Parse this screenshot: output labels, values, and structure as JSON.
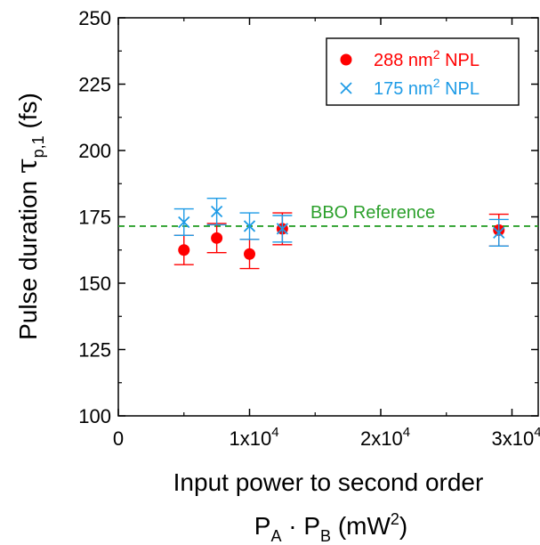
{
  "chart_data": {
    "type": "scatter",
    "xlim": [
      0,
      32000
    ],
    "ylim": [
      100,
      250
    ],
    "grid": false,
    "legend_position": "top-right",
    "yticks": [
      100,
      125,
      150,
      175,
      200,
      225,
      250
    ],
    "ytick_labels": [
      "100",
      "125",
      "150",
      "175",
      "200",
      "225",
      "250"
    ],
    "xticks": [
      0,
      10000,
      20000,
      30000
    ],
    "xtick_labels": [
      {
        "base": "0",
        "exp": ""
      },
      {
        "base": "1x10",
        "exp": "4"
      },
      {
        "base": "2x10",
        "exp": "4"
      },
      {
        "base": "3x10",
        "exp": "4"
      }
    ],
    "ylabel": {
      "main": "Pulse duration ",
      "symbol": "τ",
      "sub": "p,1",
      "unit": " (fs)"
    },
    "xlabel_line1": "Input power to second order",
    "xlabel_line2": {
      "a": "P",
      "a_sub": "A",
      "dot": " · ",
      "b": "P",
      "b_sub": "B",
      "unit_pre": "  (mW",
      "unit_sup": "2",
      "unit_post": ")"
    },
    "reference": {
      "label": "BBO Reference",
      "value": 171.5,
      "color": "#2ca02c"
    },
    "series": [
      {
        "name": {
          "pre": "288 nm",
          "sup": "2",
          "post": " NPL"
        },
        "marker": "circle",
        "color": "#ff0000",
        "errcolor": "#ff0000",
        "points": [
          {
            "x": 5000,
            "y": 162.5,
            "err": 5.5
          },
          {
            "x": 7500,
            "y": 167.0,
            "err": 5.5
          },
          {
            "x": 10000,
            "y": 161.0,
            "err": 5.5
          },
          {
            "x": 12500,
            "y": 170.5,
            "err": 6.0
          },
          {
            "x": 29000,
            "y": 170.0,
            "err": 6.0
          }
        ]
      },
      {
        "name": {
          "pre": "175 nm",
          "sup": "2",
          "post": " NPL"
        },
        "marker": "x",
        "color": "#1e9be6",
        "errcolor": "#1e9be6",
        "points": [
          {
            "x": 5000,
            "y": 173.0,
            "err": 5.0
          },
          {
            "x": 7500,
            "y": 177.0,
            "err": 5.0
          },
          {
            "x": 10000,
            "y": 171.5,
            "err": 5.0
          },
          {
            "x": 12500,
            "y": 170.5,
            "err": 5.0
          },
          {
            "x": 29000,
            "y": 169.0,
            "err": 5.0
          }
        ]
      }
    ]
  }
}
